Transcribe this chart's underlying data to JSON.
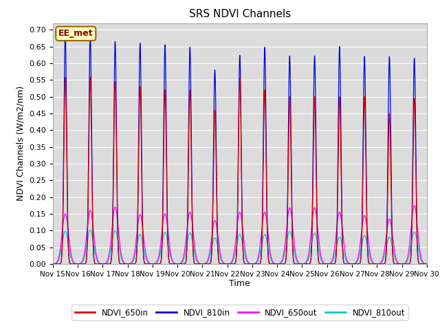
{
  "title": "SRS NDVI Channels",
  "ylabel": "NDVI Channels (W/m2/nm)",
  "xlabel": "Time",
  "ylim": [
    0.0,
    0.72
  ],
  "yticks": [
    0.0,
    0.05,
    0.1,
    0.15,
    0.2,
    0.25,
    0.3,
    0.35,
    0.4,
    0.45,
    0.5,
    0.55,
    0.6,
    0.65,
    0.7
  ],
  "annotation_text": "EE_met",
  "bg_color": "#dcdcdc",
  "line_colors": {
    "NDVI_650in": "#dd0000",
    "NDVI_810in": "#0000dd",
    "NDVI_650out": "#ff00ff",
    "NDVI_810out": "#00cccc"
  },
  "peak_810in": [
    0.685,
    0.685,
    0.665,
    0.66,
    0.655,
    0.648,
    0.58,
    0.624,
    0.648,
    0.622,
    0.622,
    0.65,
    0.62,
    0.62,
    0.615
  ],
  "peak_650in": [
    0.558,
    0.558,
    0.545,
    0.53,
    0.52,
    0.52,
    0.46,
    0.555,
    0.52,
    0.5,
    0.5,
    0.5,
    0.5,
    0.45,
    0.495
  ],
  "peak_650out": [
    0.15,
    0.16,
    0.17,
    0.148,
    0.15,
    0.155,
    0.13,
    0.155,
    0.155,
    0.168,
    0.168,
    0.155,
    0.145,
    0.135,
    0.175
  ],
  "peak_810out": [
    0.098,
    0.102,
    0.1,
    0.088,
    0.095,
    0.093,
    0.078,
    0.088,
    0.088,
    0.098,
    0.093,
    0.08,
    0.085,
    0.08,
    0.096
  ],
  "n_days": 15,
  "points_per_day": 480,
  "spike_sigma_in": 0.055,
  "spike_sigma_out": 0.13
}
